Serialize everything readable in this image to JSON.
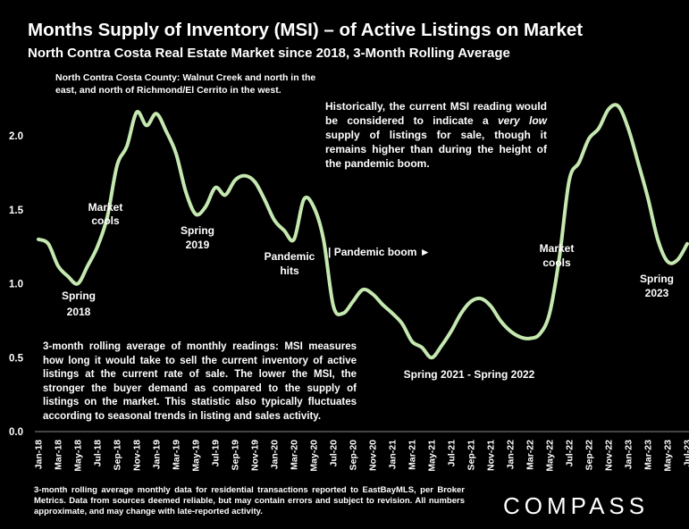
{
  "header": {
    "title": "Months Supply of Inventory (MSI) – of Active Listings on Market",
    "subtitle": "North Contra Costa Real Estate Market since 2018, 3-Month Rolling Average"
  },
  "notes": {
    "top": "North Contra Costa County: Walnut Creek and north in the east, and north of Richmond/El Cerrito in the west.",
    "right_before": "Historically, the current MSI reading would be considered to indicate a ",
    "right_em": "very low",
    "right_after": " supply of listings for sale, though it remains higher than during the height of the pandemic boom.",
    "bottom": "3-month rolling average of monthly readings: MSI measures how long it would take to sell the current inventory of active listings at the current rate of sale. The lower the MSI, the stronger the buyer demand as compared to the supply of listings on the market. This statistic also typically fluctuates according to seasonal trends in listing and sales activity."
  },
  "footer": {
    "text": "3-month rolling average monthly data for residential transactions reported to EastBayMLS, per Broker Metrics. Data from sources deemed reliable, but may contain errors and subject to revision. All numbers approximate, and may change with late-reported activity.",
    "logo": "COMPASS"
  },
  "chart_data": {
    "type": "line",
    "title": "Months Supply of Inventory (MSI) – of Active Listings on Market",
    "ylim": [
      0,
      2.3
    ],
    "y_ticks": [
      "0.0",
      "0.5",
      "1.0",
      "1.5",
      "2.0"
    ],
    "x_ticks": [
      "Jan-18",
      "Mar-18",
      "May-18",
      "Jul-18",
      "Sep-18",
      "Nov-18",
      "Jan-19",
      "Mar-19",
      "May-19",
      "Jul-19",
      "Sep-19",
      "Nov-19",
      "Jan-20",
      "Mar-20",
      "May-20",
      "Jul-20",
      "Sep-20",
      "Nov-20",
      "Jan-21",
      "Mar-21",
      "May-21",
      "Jul-21",
      "Sep-21",
      "Nov-21",
      "Jan-22",
      "Mar-22",
      "May-22",
      "Jul-22",
      "Sep-22",
      "Nov-22",
      "Jan-23",
      "Mar-23",
      "May-23",
      "Jul-23"
    ],
    "line_color": "#c5e8b0",
    "grid": false,
    "series": [
      {
        "x": [
          "Jan-18",
          "Feb-18",
          "Mar-18",
          "Apr-18",
          "May-18",
          "Jun-18",
          "Jul-18",
          "Aug-18",
          "Sep-18",
          "Oct-18",
          "Nov-18",
          "Dec-18",
          "Jan-19",
          "Feb-19",
          "Mar-19",
          "Apr-19",
          "May-19",
          "Jun-19",
          "Jul-19",
          "Aug-19",
          "Sep-19",
          "Oct-19",
          "Nov-19",
          "Dec-19",
          "Jan-20",
          "Feb-20",
          "Mar-20",
          "Apr-20",
          "May-20",
          "Jun-20",
          "Jul-20",
          "Aug-20",
          "Sep-20",
          "Oct-20",
          "Nov-20",
          "Dec-20",
          "Jan-21",
          "Feb-21",
          "Mar-21",
          "Apr-21",
          "May-21",
          "Jun-21",
          "Jul-21",
          "Aug-21",
          "Sep-21",
          "Oct-21",
          "Nov-21",
          "Dec-21",
          "Jan-22",
          "Feb-22",
          "Mar-22",
          "Apr-22",
          "May-22",
          "Jun-22",
          "Jul-22",
          "Aug-22",
          "Sep-22",
          "Oct-22",
          "Nov-22",
          "Dec-22",
          "Jan-23",
          "Feb-23",
          "Mar-23",
          "Apr-23",
          "May-23",
          "Jun-23",
          "Jul-23"
        ],
        "values": [
          1.3,
          1.27,
          1.12,
          1.05,
          1.0,
          1.12,
          1.25,
          1.45,
          1.8,
          1.93,
          2.16,
          2.07,
          2.15,
          2.03,
          1.88,
          1.62,
          1.47,
          1.52,
          1.65,
          1.6,
          1.7,
          1.73,
          1.69,
          1.57,
          1.43,
          1.36,
          1.3,
          1.57,
          1.52,
          1.3,
          0.85,
          0.8,
          0.88,
          0.96,
          0.93,
          0.86,
          0.8,
          0.73,
          0.61,
          0.57,
          0.5,
          0.58,
          0.68,
          0.8,
          0.88,
          0.9,
          0.85,
          0.75,
          0.68,
          0.64,
          0.63,
          0.66,
          0.8,
          1.18,
          1.7,
          1.82,
          1.98,
          2.05,
          2.18,
          2.2,
          2.05,
          1.82,
          1.58,
          1.3,
          1.15,
          1.16,
          1.27
        ]
      }
    ],
    "annotations": {
      "spring2018": "Spring 2018",
      "market_cools_1": "Market cools",
      "spring2019": "Spring 2019",
      "pandemic_hits": "Pandemic hits",
      "pandemic_boom": "| Pandemic boom ►",
      "spring2021_2022": "Spring 2021 - Spring 2022",
      "market_cools_2": "Market cools",
      "spring2023": "Spring 2023"
    }
  }
}
